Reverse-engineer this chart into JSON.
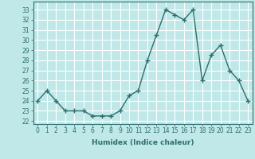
{
  "x": [
    0,
    1,
    2,
    3,
    4,
    5,
    6,
    7,
    8,
    9,
    10,
    11,
    12,
    13,
    14,
    15,
    16,
    17,
    18,
    19,
    20,
    21,
    22,
    23
  ],
  "y": [
    24,
    25,
    24,
    23,
    23,
    23,
    22.5,
    22.5,
    22.5,
    23,
    24.5,
    25,
    28,
    30.5,
    33,
    32.5,
    32,
    33,
    26,
    28.5,
    29.5,
    27,
    26,
    24
  ],
  "line_color": "#2d6e6e",
  "marker": "+",
  "marker_size": 4,
  "marker_linewidth": 1.0,
  "bg_color": "#c0e8e8",
  "grid_color": "#ffffff",
  "xlabel": "Humidex (Indice chaleur)",
  "ylabel_ticks": [
    22,
    23,
    24,
    25,
    26,
    27,
    28,
    29,
    30,
    31,
    32,
    33
  ],
  "ylim": [
    21.7,
    33.8
  ],
  "xlim": [
    -0.5,
    23.5
  ],
  "xticks": [
    0,
    1,
    2,
    3,
    4,
    5,
    6,
    7,
    8,
    9,
    10,
    11,
    12,
    13,
    14,
    15,
    16,
    17,
    18,
    19,
    20,
    21,
    22,
    23
  ],
  "tick_color": "#2d6e6e",
  "label_fontsize": 5.5,
  "axis_fontsize": 6.5,
  "line_width": 1.0
}
